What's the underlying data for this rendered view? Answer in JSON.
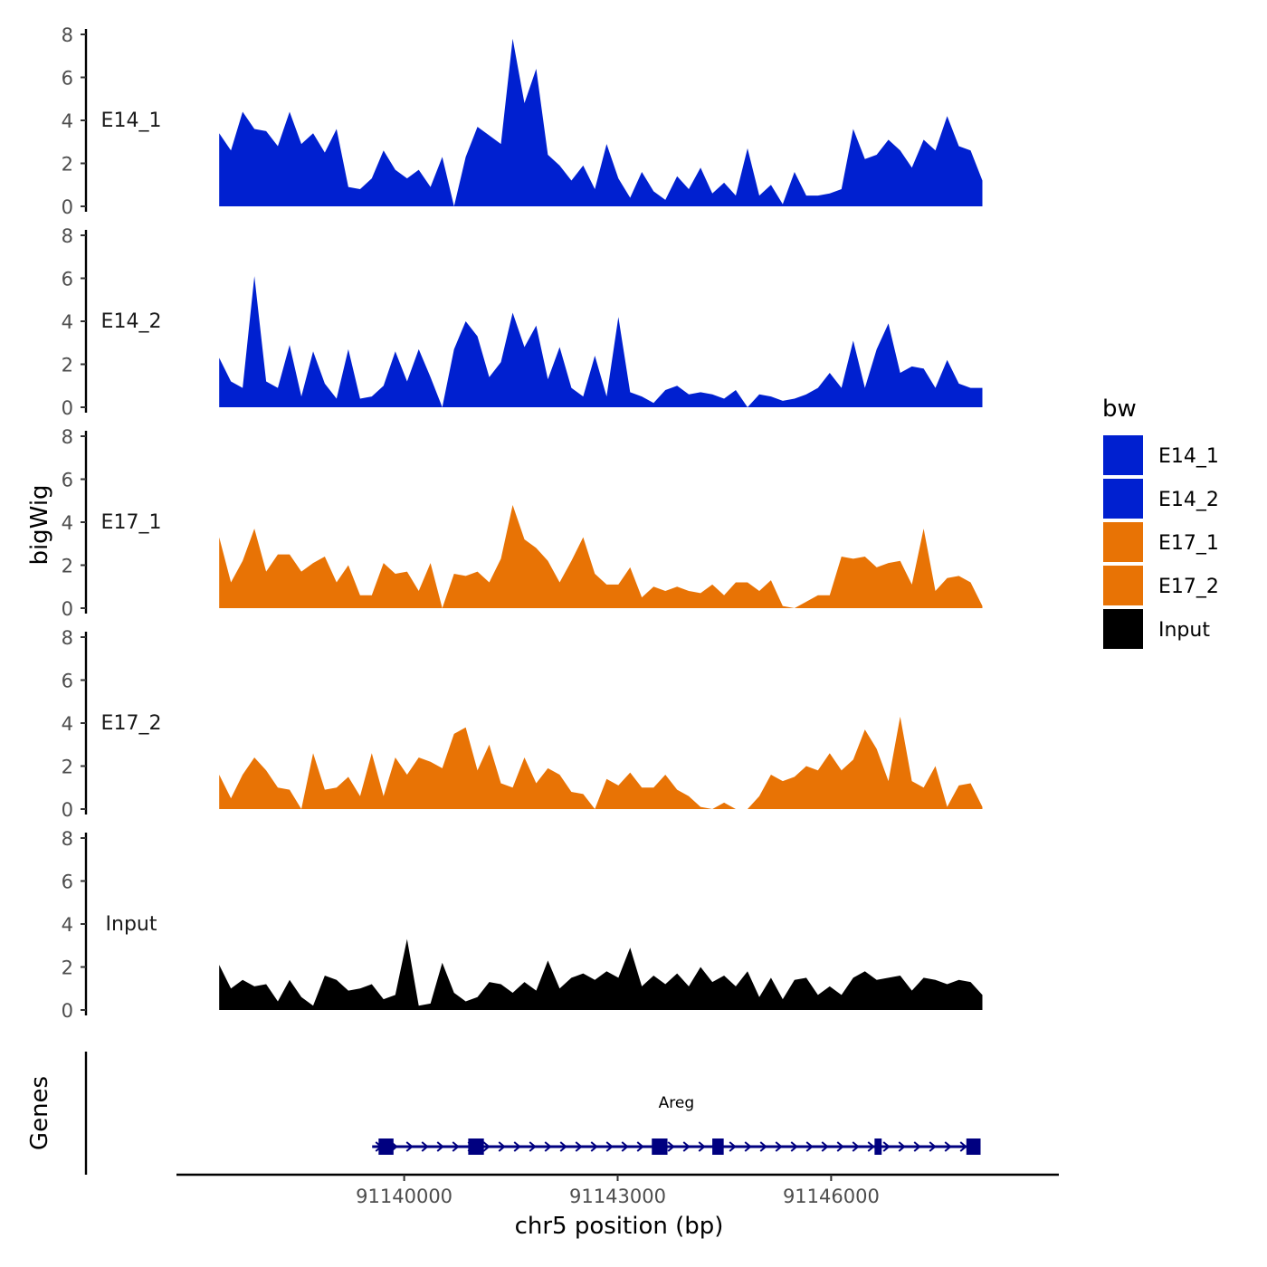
{
  "chart_data": {
    "type": "area",
    "title": "",
    "ylabel": "bigWig",
    "genes_label": "Genes",
    "xlabel": "chr5 position (bp)",
    "xlim": [
      91136800,
      91149200
    ],
    "ylim": [
      0,
      8
    ],
    "y_ticks": [
      0,
      2,
      4,
      6,
      8
    ],
    "x_ticks": [
      91140000,
      91143000,
      91146000
    ],
    "x_tick_labels": [
      "91140000",
      "91143000",
      "91146000"
    ],
    "legend": {
      "title": "bw",
      "placement": "right",
      "entries": [
        {
          "label": "E14_1",
          "color": "#0020d0"
        },
        {
          "label": "E14_2",
          "color": "#0020d0"
        },
        {
          "label": "E17_1",
          "color": "#e87305"
        },
        {
          "label": "E17_2",
          "color": "#e87305"
        },
        {
          "label": "Input",
          "color": "#000000"
        }
      ]
    },
    "tracks": [
      {
        "name": "E14_1",
        "color": "#0020d0",
        "x": [
          91137400,
          91137565,
          91137730,
          91137895,
          91138060,
          91138225,
          91138390,
          91138555,
          91138720,
          91138885,
          91139050,
          91139215,
          91139380,
          91139545,
          91139710,
          91139875,
          91140040,
          91140205,
          91140370,
          91140535,
          91140700,
          91140865,
          91141030,
          91141195,
          91141360,
          91141525,
          91141690,
          91141855,
          91142020,
          91142185,
          91142350,
          91142515,
          91142680,
          91142845,
          91143010,
          91143175,
          91143340,
          91143505,
          91143670,
          91143835,
          91144000,
          91144165,
          91144330,
          91144495,
          91144660,
          91144825,
          91144990,
          91145155,
          91145320,
          91145485,
          91145650,
          91145815,
          91145980,
          91146145,
          91146310,
          91146475,
          91146640,
          91146805,
          91146970,
          91147135,
          91147300,
          91147465,
          91147630,
          91147795,
          91147960,
          91148125
        ],
        "values": [
          3.4,
          2.6,
          4.4,
          3.6,
          3.5,
          2.8,
          4.4,
          2.9,
          3.4,
          2.5,
          3.6,
          0.9,
          0.8,
          1.3,
          2.6,
          1.7,
          1.3,
          1.7,
          0.9,
          2.3,
          0.0,
          2.3,
          3.7,
          3.3,
          2.9,
          7.8,
          4.8,
          6.4,
          2.4,
          1.9,
          1.2,
          1.9,
          0.8,
          2.9,
          1.3,
          0.4,
          1.6,
          0.7,
          0.3,
          1.4,
          0.8,
          1.8,
          0.6,
          1.1,
          0.5,
          2.7,
          0.5,
          1.0,
          0.1,
          1.6,
          0.5,
          0.5,
          0.6,
          0.8,
          3.6,
          2.2,
          2.4,
          3.1,
          2.6,
          1.8,
          3.1,
          2.6,
          4.2,
          2.8,
          2.6,
          1.2
        ]
      },
      {
        "name": "E14_2",
        "color": "#0020d0",
        "x": [
          91137400,
          91137565,
          91137730,
          91137895,
          91138060,
          91138225,
          91138390,
          91138555,
          91138720,
          91138885,
          91139050,
          91139215,
          91139380,
          91139545,
          91139710,
          91139875,
          91140040,
          91140205,
          91140370,
          91140535,
          91140700,
          91140865,
          91141030,
          91141195,
          91141360,
          91141525,
          91141690,
          91141855,
          91142020,
          91142185,
          91142350,
          91142515,
          91142680,
          91142845,
          91143010,
          91143175,
          91143340,
          91143505,
          91143670,
          91143835,
          91144000,
          91144165,
          91144330,
          91144495,
          91144660,
          91144825,
          91144990,
          91145155,
          91145320,
          91145485,
          91145650,
          91145815,
          91145980,
          91146145,
          91146310,
          91146475,
          91146640,
          91146805,
          91146970,
          91147135,
          91147300,
          91147465,
          91147630,
          91147795,
          91147960,
          91148125
        ],
        "values": [
          2.3,
          1.2,
          0.9,
          6.1,
          1.2,
          0.9,
          2.9,
          0.5,
          2.6,
          1.1,
          0.4,
          2.7,
          0.4,
          0.5,
          1.0,
          2.6,
          1.2,
          2.7,
          1.4,
          0.0,
          2.7,
          4.0,
          3.3,
          1.4,
          2.1,
          4.4,
          2.8,
          3.8,
          1.3,
          2.8,
          0.9,
          0.5,
          2.4,
          0.5,
          4.2,
          0.7,
          0.5,
          0.2,
          0.8,
          1.0,
          0.6,
          0.7,
          0.6,
          0.4,
          0.8,
          0.0,
          0.6,
          0.5,
          0.3,
          0.4,
          0.6,
          0.9,
          1.6,
          0.9,
          3.1,
          0.9,
          2.7,
          3.9,
          1.6,
          1.9,
          1.8,
          0.9,
          2.2,
          1.1,
          0.9,
          0.9
        ]
      },
      {
        "name": "E17_1",
        "color": "#e87305",
        "x": [
          91137400,
          91137565,
          91137730,
          91137895,
          91138060,
          91138225,
          91138390,
          91138555,
          91138720,
          91138885,
          91139050,
          91139215,
          91139380,
          91139545,
          91139710,
          91139875,
          91140040,
          91140205,
          91140370,
          91140535,
          91140700,
          91140865,
          91141030,
          91141195,
          91141360,
          91141525,
          91141690,
          91141855,
          91142020,
          91142185,
          91142350,
          91142515,
          91142680,
          91142845,
          91143010,
          91143175,
          91143340,
          91143505,
          91143670,
          91143835,
          91144000,
          91144165,
          91144330,
          91144495,
          91144660,
          91144825,
          91144990,
          91145155,
          91145320,
          91145485,
          91145650,
          91145815,
          91145980,
          91146145,
          91146310,
          91146475,
          91146640,
          91146805,
          91146970,
          91147135,
          91147300,
          91147465,
          91147630,
          91147795,
          91147960,
          91148125
        ],
        "values": [
          3.3,
          1.2,
          2.2,
          3.7,
          1.7,
          2.5,
          2.5,
          1.7,
          2.1,
          2.4,
          1.2,
          2.0,
          0.6,
          0.6,
          2.1,
          1.6,
          1.7,
          0.8,
          2.1,
          0.0,
          1.6,
          1.5,
          1.7,
          1.2,
          2.3,
          4.8,
          3.2,
          2.8,
          2.2,
          1.2,
          2.2,
          3.3,
          1.6,
          1.1,
          1.1,
          1.9,
          0.5,
          1.0,
          0.8,
          1.0,
          0.8,
          0.7,
          1.1,
          0.6,
          1.2,
          1.2,
          0.8,
          1.3,
          0.1,
          0.0,
          0.3,
          0.6,
          0.6,
          2.4,
          2.3,
          2.4,
          1.9,
          2.1,
          2.2,
          1.1,
          3.7,
          0.8,
          1.4,
          1.5,
          1.2,
          0.1
        ]
      },
      {
        "name": "E17_2",
        "color": "#e87305",
        "x": [
          91137400,
          91137565,
          91137730,
          91137895,
          91138060,
          91138225,
          91138390,
          91138555,
          91138720,
          91138885,
          91139050,
          91139215,
          91139380,
          91139545,
          91139710,
          91139875,
          91140040,
          91140205,
          91140370,
          91140535,
          91140700,
          91140865,
          91141030,
          91141195,
          91141360,
          91141525,
          91141690,
          91141855,
          91142020,
          91142185,
          91142350,
          91142515,
          91142680,
          91142845,
          91143010,
          91143175,
          91143340,
          91143505,
          91143670,
          91143835,
          91144000,
          91144165,
          91144330,
          91144495,
          91144660,
          91144825,
          91144990,
          91145155,
          91145320,
          91145485,
          91145650,
          91145815,
          91145980,
          91146145,
          91146310,
          91146475,
          91146640,
          91146805,
          91146970,
          91147135,
          91147300,
          91147465,
          91147630,
          91147795,
          91147960,
          91148125
        ],
        "values": [
          1.6,
          0.5,
          1.6,
          2.4,
          1.8,
          1.0,
          0.9,
          0.0,
          2.6,
          0.9,
          1.0,
          1.5,
          0.6,
          2.6,
          0.6,
          2.4,
          1.6,
          2.4,
          2.2,
          1.9,
          3.5,
          3.8,
          1.8,
          3.0,
          1.2,
          1.0,
          2.4,
          1.2,
          1.9,
          1.6,
          0.8,
          0.7,
          0.0,
          1.4,
          1.1,
          1.7,
          1.0,
          1.0,
          1.6,
          0.9,
          0.6,
          0.1,
          0.0,
          0.3,
          0.0,
          0.0,
          0.6,
          1.6,
          1.3,
          1.5,
          2.0,
          1.8,
          2.6,
          1.8,
          2.3,
          3.7,
          2.8,
          1.3,
          4.3,
          1.3,
          1.0,
          2.0,
          0.1,
          1.1,
          1.2,
          0.1
        ]
      },
      {
        "name": "Input",
        "color": "#000000",
        "x": [
          91137400,
          91137565,
          91137730,
          91137895,
          91138060,
          91138225,
          91138390,
          91138555,
          91138720,
          91138885,
          91139050,
          91139215,
          91139380,
          91139545,
          91139710,
          91139875,
          91140040,
          91140205,
          91140370,
          91140535,
          91140700,
          91140865,
          91141030,
          91141195,
          91141360,
          91141525,
          91141690,
          91141855,
          91142020,
          91142185,
          91142350,
          91142515,
          91142680,
          91142845,
          91143010,
          91143175,
          91143340,
          91143505,
          91143670,
          91143835,
          91144000,
          91144165,
          91144330,
          91144495,
          91144660,
          91144825,
          91144990,
          91145155,
          91145320,
          91145485,
          91145650,
          91145815,
          91145980,
          91146145,
          91146310,
          91146475,
          91146640,
          91146805,
          91146970,
          91147135,
          91147300,
          91147465,
          91147630,
          91147795,
          91147960,
          91148125
        ],
        "values": [
          2.1,
          1.0,
          1.4,
          1.1,
          1.2,
          0.4,
          1.4,
          0.6,
          0.2,
          1.6,
          1.4,
          0.9,
          1.0,
          1.2,
          0.5,
          0.7,
          3.3,
          0.2,
          0.3,
          2.2,
          0.8,
          0.4,
          0.6,
          1.3,
          1.2,
          0.8,
          1.3,
          0.9,
          2.3,
          1.0,
          1.5,
          1.7,
          1.4,
          1.8,
          1.5,
          2.9,
          1.1,
          1.6,
          1.2,
          1.7,
          1.1,
          2.0,
          1.3,
          1.6,
          1.1,
          1.8,
          0.6,
          1.5,
          0.5,
          1.4,
          1.5,
          0.7,
          1.1,
          0.7,
          1.5,
          1.8,
          1.4,
          1.5,
          1.6,
          0.9,
          1.5,
          1.4,
          1.2,
          1.4,
          1.3,
          0.7
        ]
      }
    ],
    "gene_track": {
      "name": "Areg",
      "strand": "+",
      "start": 91139550,
      "end": 91148100,
      "exons": [
        [
          91139640,
          91139850
        ],
        [
          91140900,
          91141120
        ],
        [
          91143480,
          91143700
        ],
        [
          91144330,
          91144490
        ],
        [
          91146610,
          91146710
        ],
        [
          91147900,
          91148100
        ]
      ]
    }
  }
}
